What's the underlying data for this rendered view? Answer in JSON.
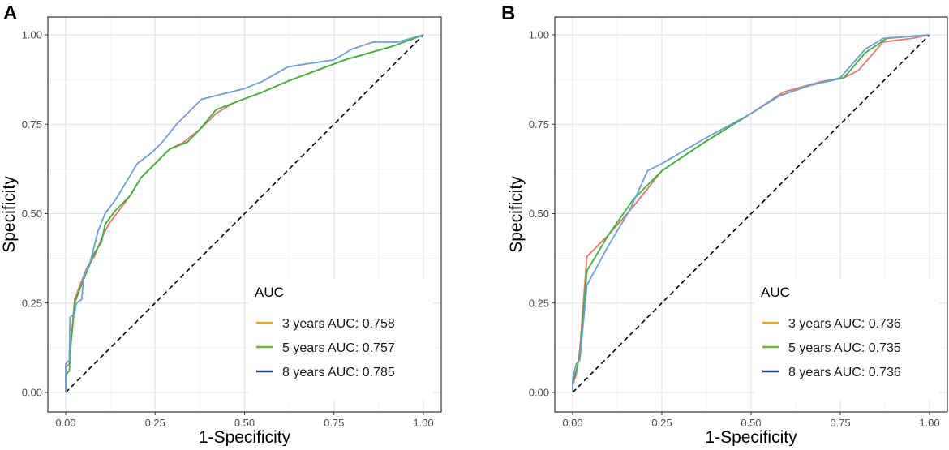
{
  "chart_data": [
    {
      "panel_label": "A",
      "type": "line",
      "xlabel": "1-Specificity",
      "ylabel": "Specificity",
      "xlim": [
        0,
        1
      ],
      "ylim": [
        0,
        1
      ],
      "x_ticks": [
        0,
        0.25,
        0.5,
        0.75,
        1
      ],
      "y_ticks": [
        0,
        0.25,
        0.5,
        0.75,
        1
      ],
      "x_tick_labels": [
        "0.00",
        "0.25",
        "0.50",
        "0.75",
        "1.00"
      ],
      "y_tick_labels": [
        "0.00",
        "0.25",
        "0.50",
        "0.75",
        "1.00"
      ],
      "grid": true,
      "legend": {
        "title": "AUC",
        "position": "bottom-right"
      },
      "reference_line": {
        "style": "dashed",
        "color": "#000000",
        "from": [
          0,
          0
        ],
        "to": [
          1,
          1
        ]
      },
      "series": [
        {
          "name": "3 years",
          "legend_label": "3 years AUC: 0.758",
          "auc": 0.758,
          "line_color": "#e8766d",
          "legend_color": "#f4a11e",
          "points": [
            [
              0,
              0
            ],
            [
              0,
              0.07
            ],
            [
              0.01,
              0.08
            ],
            [
              0.015,
              0.15
            ],
            [
              0.02,
              0.2
            ],
            [
              0.025,
              0.26
            ],
            [
              0.04,
              0.3
            ],
            [
              0.06,
              0.35
            ],
            [
              0.08,
              0.38
            ],
            [
              0.1,
              0.43
            ],
            [
              0.12,
              0.47
            ],
            [
              0.15,
              0.51
            ],
            [
              0.18,
              0.55
            ],
            [
              0.21,
              0.6
            ],
            [
              0.25,
              0.64
            ],
            [
              0.29,
              0.68
            ],
            [
              0.33,
              0.7
            ],
            [
              0.38,
              0.74
            ],
            [
              0.42,
              0.78
            ],
            [
              0.47,
              0.81
            ],
            [
              0.55,
              0.84
            ],
            [
              0.62,
              0.87
            ],
            [
              0.7,
              0.9
            ],
            [
              0.78,
              0.93
            ],
            [
              0.85,
              0.95
            ],
            [
              0.92,
              0.97
            ],
            [
              1,
              1
            ]
          ]
        },
        {
          "name": "5 years",
          "legend_label": "5 years AUC: 0.757",
          "auc": 0.757,
          "line_color": "#3cb33c",
          "legend_color": "#5fbf37",
          "points": [
            [
              0,
              0
            ],
            [
              0,
              0.05
            ],
            [
              0.01,
              0.06
            ],
            [
              0.015,
              0.14
            ],
            [
              0.02,
              0.19
            ],
            [
              0.025,
              0.25
            ],
            [
              0.04,
              0.29
            ],
            [
              0.06,
              0.34
            ],
            [
              0.08,
              0.39
            ],
            [
              0.1,
              0.42
            ],
            [
              0.11,
              0.47
            ],
            [
              0.14,
              0.51
            ],
            [
              0.18,
              0.55
            ],
            [
              0.21,
              0.6
            ],
            [
              0.25,
              0.64
            ],
            [
              0.29,
              0.68
            ],
            [
              0.34,
              0.7
            ],
            [
              0.37,
              0.73
            ],
            [
              0.42,
              0.79
            ],
            [
              0.47,
              0.81
            ],
            [
              0.55,
              0.84
            ],
            [
              0.62,
              0.87
            ],
            [
              0.7,
              0.9
            ],
            [
              0.78,
              0.93
            ],
            [
              0.85,
              0.95
            ],
            [
              0.92,
              0.97
            ],
            [
              1,
              1
            ]
          ]
        },
        {
          "name": "8 years",
          "legend_label": "8 years AUC: 0.785",
          "auc": 0.785,
          "line_color": "#6d9fdb",
          "legend_color": "#1f3f8f",
          "points": [
            [
              0,
              0
            ],
            [
              0,
              0.08
            ],
            [
              0.01,
              0.09
            ],
            [
              0.012,
              0.21
            ],
            [
              0.025,
              0.22
            ],
            [
              0.03,
              0.25
            ],
            [
              0.045,
              0.26
            ],
            [
              0.05,
              0.32
            ],
            [
              0.07,
              0.37
            ],
            [
              0.09,
              0.45
            ],
            [
              0.11,
              0.5
            ],
            [
              0.14,
              0.54
            ],
            [
              0.17,
              0.59
            ],
            [
              0.2,
              0.64
            ],
            [
              0.24,
              0.67
            ],
            [
              0.27,
              0.7
            ],
            [
              0.31,
              0.75
            ],
            [
              0.35,
              0.79
            ],
            [
              0.38,
              0.82
            ],
            [
              0.42,
              0.83
            ],
            [
              0.5,
              0.85
            ],
            [
              0.55,
              0.87
            ],
            [
              0.62,
              0.91
            ],
            [
              0.68,
              0.92
            ],
            [
              0.75,
              0.93
            ],
            [
              0.8,
              0.96
            ],
            [
              0.86,
              0.98
            ],
            [
              0.93,
              0.98
            ],
            [
              1,
              1
            ]
          ]
        }
      ]
    },
    {
      "panel_label": "B",
      "type": "line",
      "xlabel": "1-Specificity",
      "ylabel": "Specificity",
      "xlim": [
        0,
        1
      ],
      "ylim": [
        0,
        1
      ],
      "x_ticks": [
        0,
        0.25,
        0.5,
        0.75,
        1
      ],
      "y_ticks": [
        0,
        0.25,
        0.5,
        0.75,
        1
      ],
      "x_tick_labels": [
        "0.00",
        "0.25",
        "0.50",
        "0.75",
        "1.00"
      ],
      "y_tick_labels": [
        "0.00",
        "0.25",
        "0.50",
        "0.75",
        "1.00"
      ],
      "grid": true,
      "legend": {
        "title": "AUC",
        "position": "bottom-right"
      },
      "reference_line": {
        "style": "dashed",
        "color": "#000000",
        "from": [
          0,
          0
        ],
        "to": [
          1,
          1
        ]
      },
      "series": [
        {
          "name": "3 years",
          "legend_label": "3 years AUC: 0.736",
          "auc": 0.736,
          "line_color": "#e8766d",
          "legend_color": "#f4a11e",
          "points": [
            [
              0,
              0
            ],
            [
              0,
              0.02
            ],
            [
              0.01,
              0.05
            ],
            [
              0.02,
              0.12
            ],
            [
              0.04,
              0.38
            ],
            [
              0.1,
              0.44
            ],
            [
              0.17,
              0.52
            ],
            [
              0.25,
              0.62
            ],
            [
              0.37,
              0.7
            ],
            [
              0.5,
              0.78
            ],
            [
              0.59,
              0.84
            ],
            [
              0.7,
              0.87
            ],
            [
              0.76,
              0.88
            ],
            [
              0.8,
              0.9
            ],
            [
              0.87,
              0.98
            ],
            [
              0.95,
              0.99
            ],
            [
              1,
              1
            ]
          ]
        },
        {
          "name": "5 years",
          "legend_label": "5 years AUC: 0.735",
          "auc": 0.735,
          "line_color": "#3cb33c",
          "legend_color": "#5fbf37",
          "points": [
            [
              0,
              0
            ],
            [
              0,
              0.03
            ],
            [
              0.01,
              0.06
            ],
            [
              0.02,
              0.1
            ],
            [
              0.04,
              0.34
            ],
            [
              0.1,
              0.44
            ],
            [
              0.17,
              0.54
            ],
            [
              0.25,
              0.62
            ],
            [
              0.37,
              0.7
            ],
            [
              0.5,
              0.78
            ],
            [
              0.58,
              0.83
            ],
            [
              0.67,
              0.86
            ],
            [
              0.76,
              0.88
            ],
            [
              0.82,
              0.95
            ],
            [
              0.88,
              0.99
            ],
            [
              1,
              1
            ]
          ]
        },
        {
          "name": "8 years",
          "legend_label": "8 years AUC: 0.736",
          "auc": 0.736,
          "line_color": "#6d9fdb",
          "legend_color": "#1f3f8f",
          "points": [
            [
              0,
              0
            ],
            [
              0,
              0.04
            ],
            [
              0.01,
              0.08
            ],
            [
              0.02,
              0.09
            ],
            [
              0.04,
              0.3
            ],
            [
              0.1,
              0.41
            ],
            [
              0.16,
              0.51
            ],
            [
              0.21,
              0.62
            ],
            [
              0.25,
              0.64
            ],
            [
              0.37,
              0.71
            ],
            [
              0.5,
              0.78
            ],
            [
              0.58,
              0.83
            ],
            [
              0.67,
              0.86
            ],
            [
              0.75,
              0.88
            ],
            [
              0.82,
              0.96
            ],
            [
              0.87,
              0.99
            ],
            [
              1,
              1
            ]
          ]
        }
      ]
    }
  ]
}
